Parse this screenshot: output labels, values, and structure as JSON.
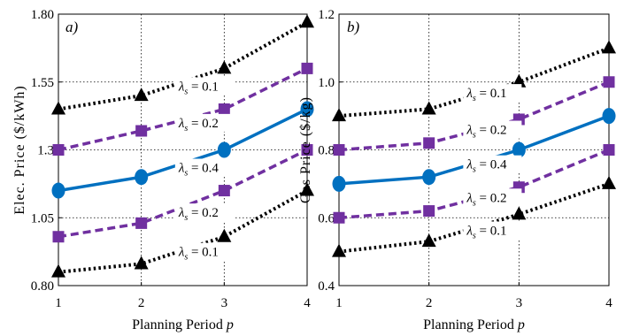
{
  "chart_data": [
    {
      "type": "line",
      "panel_label": "a)",
      "xlabel": "Planning Period",
      "xlabel_var": "p",
      "ylabel": "Elec. Price ($/kWh)",
      "x": [
        1,
        2,
        3,
        4
      ],
      "x_ticks": [
        "1",
        "2",
        "3",
        "4"
      ],
      "y_ticks": [
        "0.80",
        "1.05",
        "1.3",
        "1.55",
        "1.80"
      ],
      "y_tick_values": [
        0.8,
        1.05,
        1.3,
        1.55,
        1.8
      ],
      "xlim": [
        1,
        4
      ],
      "ylim": [
        0.8,
        1.8
      ],
      "grid": true,
      "series": [
        {
          "values": [
            0.85,
            0.88,
            0.98,
            1.15
          ],
          "color": "#000000",
          "style": "dotted",
          "marker": "triangle"
        },
        {
          "values": [
            0.98,
            1.03,
            1.15,
            1.3
          ],
          "color": "#7030a0",
          "style": "dashed",
          "marker": "square"
        },
        {
          "values": [
            1.15,
            1.2,
            1.3,
            1.45
          ],
          "color": "#0070c0",
          "style": "solid",
          "marker": "circle"
        },
        {
          "values": [
            1.3,
            1.37,
            1.45,
            1.6
          ],
          "color": "#7030a0",
          "style": "dashed",
          "marker": "square"
        },
        {
          "values": [
            1.45,
            1.5,
            1.6,
            1.77
          ],
          "color": "#000000",
          "style": "dotted",
          "marker": "triangle"
        }
      ],
      "annotations": [
        {
          "sub": "s",
          "text": " = 0.1",
          "y": 1.525
        },
        {
          "sub": "s",
          "text": " = 0.2",
          "y": 1.39
        },
        {
          "sub": "s",
          "text": " = 0.4",
          "y": 1.225
        },
        {
          "sub": "s",
          "text": " = 0.2",
          "y": 1.06
        },
        {
          "sub": "s",
          "text": " = 0.1",
          "y": 0.915
        }
      ]
    },
    {
      "type": "line",
      "panel_label": "b)",
      "xlabel": "Planning Period",
      "xlabel_var": "p",
      "ylabel": "Gas Price ($/kg)",
      "x": [
        1,
        2,
        3,
        4
      ],
      "x_ticks": [
        "1",
        "2",
        "3",
        "4"
      ],
      "y_ticks": [
        "0.4",
        "0.6",
        "0.8",
        "1.0",
        "1.2"
      ],
      "y_tick_values": [
        0.4,
        0.6,
        0.8,
        1.0,
        1.2
      ],
      "xlim": [
        1,
        4
      ],
      "ylim": [
        0.4,
        1.2
      ],
      "grid": true,
      "series": [
        {
          "values": [
            0.5,
            0.53,
            0.61,
            0.7
          ],
          "color": "#000000",
          "style": "dotted",
          "marker": "triangle"
        },
        {
          "values": [
            0.6,
            0.62,
            0.69,
            0.8
          ],
          "color": "#7030a0",
          "style": "dashed",
          "marker": "square"
        },
        {
          "values": [
            0.7,
            0.72,
            0.8,
            0.9
          ],
          "color": "#0070c0",
          "style": "solid",
          "marker": "circle"
        },
        {
          "values": [
            0.8,
            0.82,
            0.89,
            1.0
          ],
          "color": "#7030a0",
          "style": "dashed",
          "marker": "square"
        },
        {
          "values": [
            0.9,
            0.92,
            1.0,
            1.1
          ],
          "color": "#000000",
          "style": "dotted",
          "marker": "triangle"
        }
      ],
      "annotations": [
        {
          "sub": "s",
          "text": " = 0.1",
          "y": 0.96
        },
        {
          "sub": "s",
          "text": " = 0.2",
          "y": 0.852
        },
        {
          "sub": "s",
          "text": " = 0.4",
          "y": 0.75
        },
        {
          "sub": "s",
          "text": " = 0.2",
          "y": 0.652
        },
        {
          "sub": "s",
          "text": " = 0.1",
          "y": 0.555
        }
      ]
    }
  ]
}
